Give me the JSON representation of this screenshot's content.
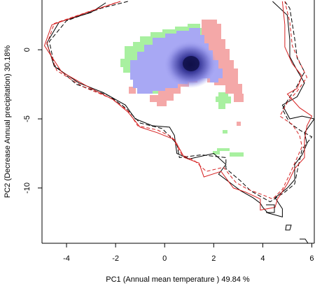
{
  "chart_data": {
    "type": "scatter",
    "title": "",
    "xlabel": "PC1 (Annual mean temperature ) 49.84 %",
    "ylabel": "PC2 (Decrease Annual precipitation) 30.18%",
    "xlim": [
      -5,
      6.1
    ],
    "ylim": [
      -14,
      3.6
    ],
    "xticks": [
      -4,
      -2,
      0,
      2,
      4,
      6
    ],
    "yticks": [
      0,
      -5,
      -10
    ],
    "xtick_labels": [
      "-4",
      "-2",
      "0",
      "2",
      "4",
      "6"
    ],
    "ytick_labels": [
      "0",
      "-5",
      "-10"
    ],
    "grid": false,
    "legend": "none",
    "colors": {
      "red_line": "#d62020",
      "black_line": "#000000",
      "green_fill": "#a8f0a0",
      "red_fill": "#f4a8a8",
      "blue_fill": "#a8a8f4",
      "density_core": "#10104a"
    },
    "series": [
      {
        "kind": "solid-black-envelope",
        "points": [
          [
            -2.4,
            3.4
          ],
          [
            -3.0,
            2.7
          ],
          [
            -4.3,
            2.0
          ],
          [
            -4.8,
            0.5
          ],
          [
            -4.5,
            -1.2
          ],
          [
            -3.5,
            -2.4
          ],
          [
            -2.5,
            -3.1
          ],
          [
            -1.6,
            -4.0
          ],
          [
            -1.2,
            -5.0
          ],
          [
            -0.5,
            -5.5
          ],
          [
            0.2,
            -5.6
          ],
          [
            0.4,
            -6.2
          ],
          [
            0.5,
            -7.5
          ],
          [
            1.0,
            -7.9
          ],
          [
            2.0,
            -7.5
          ],
          [
            2.5,
            -8.3
          ],
          [
            2.2,
            -9.0
          ],
          [
            2.8,
            -9.8
          ],
          [
            3.1,
            -10.2
          ],
          [
            3.6,
            -10.7
          ],
          [
            3.9,
            -11.1
          ],
          [
            4.0,
            -11.4
          ],
          [
            4.2,
            -11.8
          ],
          [
            4.8,
            -12.1
          ],
          [
            4.8,
            -11.5
          ],
          [
            4.5,
            -10.7
          ],
          [
            5.0,
            -10.0
          ],
          [
            5.3,
            -9.4
          ],
          [
            5.3,
            -8.3
          ],
          [
            5.6,
            -7.6
          ],
          [
            5.8,
            -6.8
          ],
          [
            5.7,
            -6.0
          ],
          [
            6.1,
            -5.0
          ],
          [
            5.6,
            -4.8
          ],
          [
            5.1,
            -5.0
          ],
          [
            4.8,
            -4.0
          ],
          [
            5.4,
            -3.4
          ],
          [
            5.7,
            -2.4
          ],
          [
            5.4,
            -1.5
          ],
          [
            5.1,
            -0.5
          ],
          [
            5.1,
            0.7
          ],
          [
            5.0,
            2.5
          ],
          [
            4.4,
            3.5
          ]
        ]
      },
      {
        "kind": "dashed-black-envelope",
        "points": [
          [
            -1.5,
            3.5
          ],
          [
            -2.6,
            3.0
          ],
          [
            -4.0,
            2.1
          ],
          [
            -4.7,
            0.6
          ],
          [
            -4.5,
            -1.1
          ],
          [
            -3.6,
            -2.5
          ],
          [
            -2.3,
            -3.3
          ],
          [
            -1.6,
            -4.2
          ],
          [
            -1.0,
            -5.3
          ],
          [
            -0.1,
            -5.7
          ],
          [
            0.5,
            -6.8
          ],
          [
            0.6,
            -7.8
          ],
          [
            1.5,
            -7.6
          ],
          [
            2.5,
            -7.8
          ],
          [
            2.5,
            -8.6
          ],
          [
            3.1,
            -9.5
          ],
          [
            3.5,
            -10.2
          ],
          [
            3.9,
            -10.6
          ],
          [
            4.3,
            -11.0
          ],
          [
            4.9,
            -10.3
          ],
          [
            5.3,
            -9.7
          ],
          [
            5.4,
            -8.8
          ],
          [
            5.6,
            -7.2
          ],
          [
            6.0,
            -6.3
          ],
          [
            5.5,
            -5.8
          ],
          [
            5.1,
            -5.3
          ],
          [
            4.8,
            -4.3
          ],
          [
            5.0,
            -3.7
          ],
          [
            5.4,
            -2.6
          ],
          [
            5.7,
            -1.6
          ],
          [
            5.4,
            -0.6
          ],
          [
            5.3,
            0.8
          ],
          [
            5.1,
            3.0
          ],
          [
            4.9,
            3.5
          ]
        ]
      },
      {
        "kind": "solid-red-envelope",
        "points": [
          [
            -1.8,
            3.5
          ],
          [
            -3.0,
            2.8
          ],
          [
            -4.6,
            1.8
          ],
          [
            -4.9,
            0.3
          ],
          [
            -4.2,
            -1.6
          ],
          [
            -3.0,
            -2.8
          ],
          [
            -2.1,
            -3.6
          ],
          [
            -1.5,
            -4.5
          ],
          [
            -1.0,
            -5.6
          ],
          [
            -0.3,
            -6.0
          ],
          [
            0.4,
            -6.5
          ],
          [
            0.8,
            -7.8
          ],
          [
            1.4,
            -8.2
          ],
          [
            1.6,
            -9.2
          ],
          [
            2.3,
            -8.8
          ],
          [
            2.8,
            -10.0
          ],
          [
            3.3,
            -10.3
          ],
          [
            3.9,
            -10.8
          ],
          [
            3.9,
            -11.6
          ],
          [
            4.5,
            -11.4
          ],
          [
            4.6,
            -10.8
          ],
          [
            5.0,
            -9.7
          ],
          [
            5.3,
            -8.6
          ],
          [
            5.7,
            -7.8
          ],
          [
            5.7,
            -6.5
          ],
          [
            5.8,
            -5.5
          ],
          [
            6.0,
            -4.8
          ],
          [
            5.5,
            -4.2
          ],
          [
            5.0,
            -3.2
          ],
          [
            5.4,
            -2.8
          ],
          [
            5.6,
            -1.9
          ],
          [
            5.2,
            -1.0
          ],
          [
            4.9,
            0.2
          ],
          [
            4.9,
            1.8
          ],
          [
            4.8,
            3.5
          ]
        ]
      },
      {
        "kind": "dashed-red-envelope",
        "points": [
          [
            -2.0,
            3.4
          ],
          [
            -3.2,
            2.7
          ],
          [
            -4.5,
            1.9
          ],
          [
            -4.8,
            0.4
          ],
          [
            -4.4,
            -1.5
          ],
          [
            -3.3,
            -2.7
          ],
          [
            -2.2,
            -3.5
          ],
          [
            -1.5,
            -4.4
          ],
          [
            -1.1,
            -5.5
          ],
          [
            -0.3,
            -5.8
          ],
          [
            0.3,
            -6.3
          ],
          [
            0.7,
            -7.6
          ],
          [
            1.2,
            -8.0
          ],
          [
            1.7,
            -8.8
          ],
          [
            2.4,
            -8.5
          ],
          [
            2.9,
            -9.6
          ],
          [
            3.4,
            -10.1
          ],
          [
            4.0,
            -10.5
          ],
          [
            4.4,
            -10.8
          ],
          [
            4.8,
            -10.1
          ],
          [
            5.1,
            -9.0
          ],
          [
            5.3,
            -8.2
          ],
          [
            5.6,
            -7.0
          ],
          [
            5.5,
            -6.2
          ],
          [
            5.2,
            -5.4
          ],
          [
            4.7,
            -4.8
          ],
          [
            5.0,
            -3.8
          ],
          [
            5.4,
            -3.0
          ],
          [
            5.8,
            -2.0
          ],
          [
            5.5,
            -0.9
          ],
          [
            5.2,
            0.3
          ],
          [
            5.1,
            2.0
          ],
          [
            4.9,
            3.5
          ]
        ]
      }
    ]
  }
}
